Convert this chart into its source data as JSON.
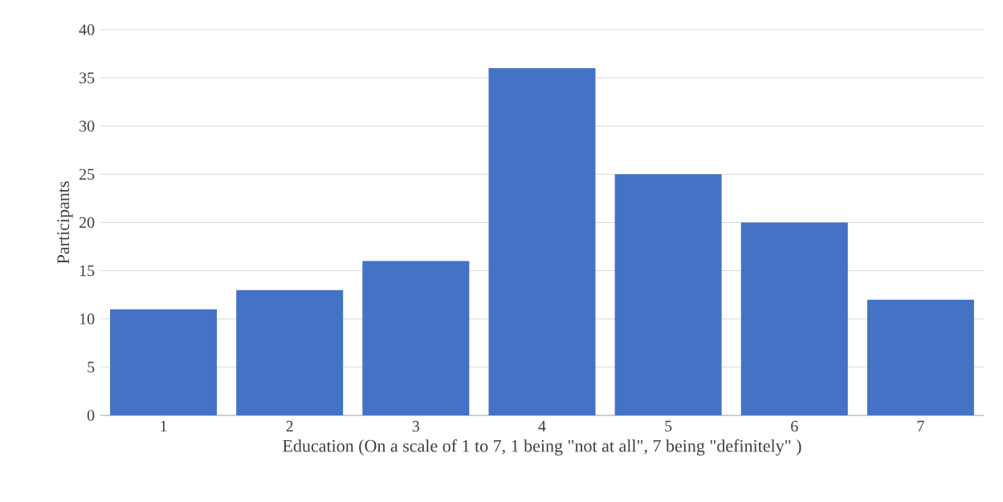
{
  "chart_data": {
    "type": "bar",
    "xlabel": "Education (On a scale of 1 to 7, 1 being \"not at all\", 7 being \"definitely\" )",
    "ylabel": "Participants",
    "categories": [
      "1",
      "2",
      "3",
      "4",
      "5",
      "6",
      "7"
    ],
    "values": [
      11,
      13,
      16,
      36,
      25,
      20,
      12
    ],
    "color": "#4472c4",
    "ylim": [
      0,
      40
    ],
    "yticks": [
      0,
      5,
      10,
      15,
      20,
      25,
      30,
      35,
      40
    ],
    "grid": "y"
  }
}
